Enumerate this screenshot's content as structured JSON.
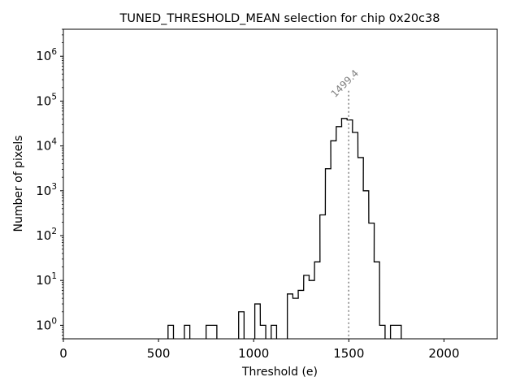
{
  "chart_data": {
    "type": "histogram",
    "title": "TUNED_THRESHOLD_MEAN selection for chip 0x20c38",
    "xlabel": "Threshold (e)",
    "ylabel": "Number of pixels",
    "xlim": [
      0,
      2280
    ],
    "ylim": [
      0.5,
      4000000
    ],
    "yscale": "log",
    "x_ticks": [
      0,
      500,
      1000,
      1500,
      2000
    ],
    "x_tick_labels": [
      "0",
      "500",
      "1000",
      "1500",
      "2000"
    ],
    "y_ticks": [
      1,
      10,
      100,
      1000,
      10000,
      100000,
      1000000
    ],
    "y_tick_labels": [
      {
        "base": "10",
        "exp": "0"
      },
      {
        "base": "10",
        "exp": "1"
      },
      {
        "base": "10",
        "exp": "2"
      },
      {
        "base": "10",
        "exp": "3"
      },
      {
        "base": "10",
        "exp": "4"
      },
      {
        "base": "10",
        "exp": "5"
      },
      {
        "base": "10",
        "exp": "6"
      }
    ],
    "bin_width": 28.5,
    "bins": [
      {
        "x": 550,
        "count": 1
      },
      {
        "x": 636,
        "count": 1
      },
      {
        "x": 750,
        "count": 1
      },
      {
        "x": 778,
        "count": 1
      },
      {
        "x": 921,
        "count": 2
      },
      {
        "x": 1006,
        "count": 3
      },
      {
        "x": 1035,
        "count": 1
      },
      {
        "x": 1092,
        "count": 1
      },
      {
        "x": 1177,
        "count": 5
      },
      {
        "x": 1206,
        "count": 4
      },
      {
        "x": 1234,
        "count": 6
      },
      {
        "x": 1263,
        "count": 13
      },
      {
        "x": 1291,
        "count": 10
      },
      {
        "x": 1320,
        "count": 26
      },
      {
        "x": 1348,
        "count": 290
      },
      {
        "x": 1377,
        "count": 3100
      },
      {
        "x": 1405,
        "count": 13000
      },
      {
        "x": 1434,
        "count": 27000
      },
      {
        "x": 1462,
        "count": 41000
      },
      {
        "x": 1491,
        "count": 38000
      },
      {
        "x": 1519,
        "count": 20000
      },
      {
        "x": 1548,
        "count": 5500
      },
      {
        "x": 1576,
        "count": 1000
      },
      {
        "x": 1605,
        "count": 190
      },
      {
        "x": 1633,
        "count": 26
      },
      {
        "x": 1662,
        "count": 1
      },
      {
        "x": 1719,
        "count": 1
      },
      {
        "x": 1747,
        "count": 1
      }
    ],
    "mean_line": {
      "x": 1499.4,
      "label": "1499.4",
      "color": "#808080",
      "top": 170000
    },
    "colors": {
      "histogram": "#000000",
      "axes": "#000000"
    }
  }
}
